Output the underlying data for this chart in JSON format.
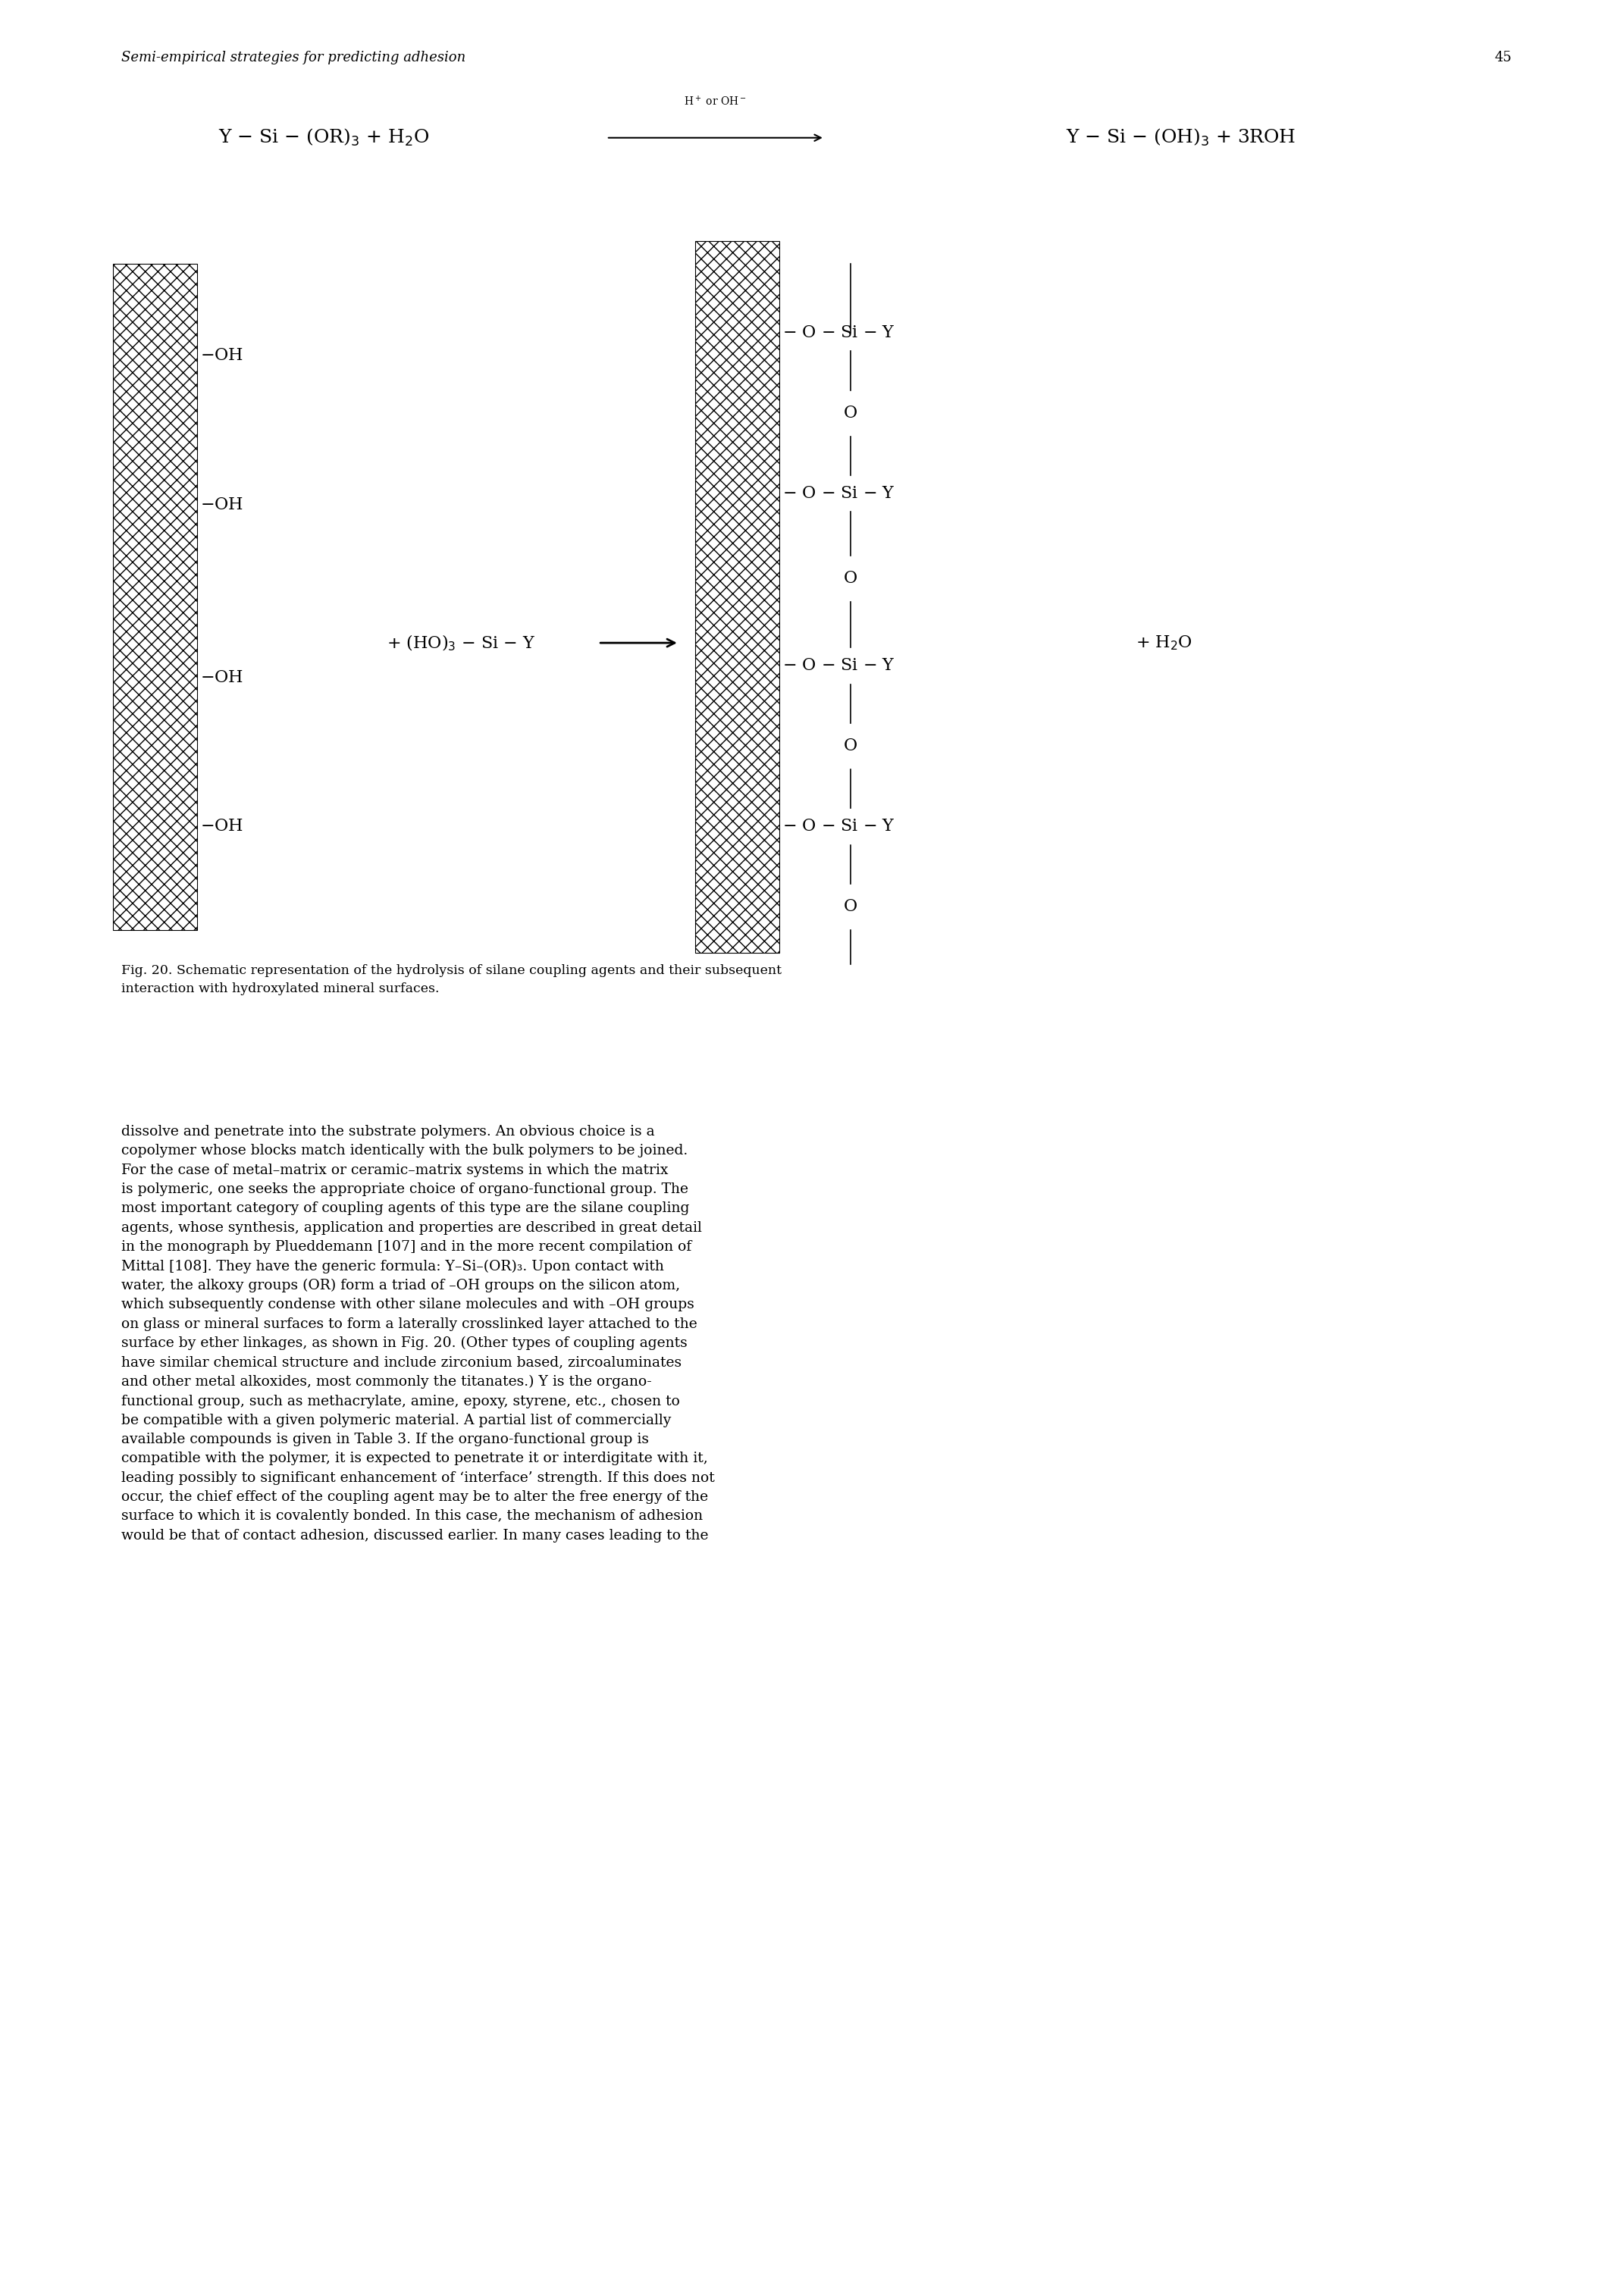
{
  "page_width": 21.33,
  "page_height": 30.29,
  "bg_color": "#ffffff",
  "header_italic": "Semi-empirical strategies for predicting adhesion",
  "header_page_num": "45",
  "caption": "Fig. 20. Schematic representation of the hydrolysis of silane coupling agents and their subsequent\ninteraction with hydroxylated mineral surfaces.",
  "body_text": "dissolve and penetrate into the substrate polymers. An obvious choice is a\ncopolymer whose blocks match identically with the bulk polymers to be joined.\nFor the case of metal–matrix or ceramic–matrix systems in which the matrix\nis polymeric, one seeks the appropriate choice of organo-functional group. The\nmost important category of coupling agents of this type are the silane coupling\nagents, whose synthesis, application and properties are described in great detail\nin the monograph by Plueddemann [107] and in the more recent compilation of\nMittal [108]. They have the generic formula: Y–Si–(OR)₃. Upon contact with\nwater, the alkoxy groups (OR) form a triad of –OH groups on the silicon atom,\nwhich subsequently condense with other silane molecules and with –OH groups\non glass or mineral surfaces to form a laterally crosslinked layer attached to the\nsurface by ether linkages, as shown in Fig. 20. (Other types of coupling agents\nhave similar chemical structure and include zirconium based, zircoaluminates\nand other metal alkoxides, most commonly the titanates.) Y is the organo-\nfunctional group, such as methacrylate, amine, epoxy, styrene, etc., chosen to\nbe compatible with a given polymeric material. A partial list of commercially\navailable compounds is given in Table 3. If the organo-functional group is\ncompatible with the polymer, it is expected to penetrate it or interdigitate with it,\nleading possibly to significant enhancement of ‘interface’ strength. If this does not\noccur, the chief effect of the coupling agent may be to alter the free energy of the\nsurface to which it is covalently bonded. In this case, the mechanism of adhesion\nwould be that of contact adhesion, discussed earlier. In many cases leading to the"
}
